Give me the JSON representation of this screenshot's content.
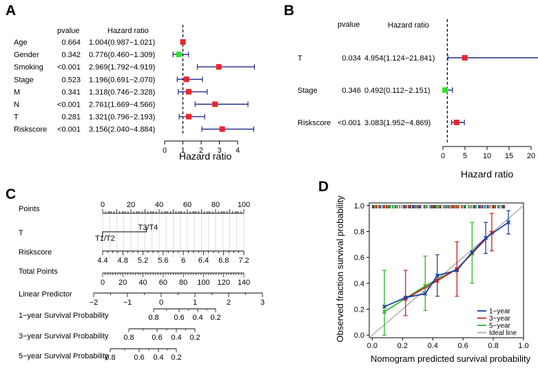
{
  "colors": {
    "red": "#e8262a",
    "green": "#2ee62e",
    "navy": "#1f2a8a",
    "blue": "#1b3fa0",
    "darkred": "#d41a1a",
    "green2": "#2fb32f",
    "gray": "#aaaaaa"
  },
  "chart_data": [
    {
      "panel": "A",
      "type": "forest",
      "header_pvalue": "pvalue",
      "header_hr": "Hazard ratio",
      "xlabel": "Hazard ratio",
      "xlim": [
        0,
        4
      ],
      "ticks": [
        "0",
        "1",
        "2",
        "3",
        "4"
      ],
      "rows": [
        {
          "label": "Age",
          "pvalue": "0.664",
          "hr_text": "1.004(0.987−1.021)",
          "hr": 1.004,
          "lo": 0.987,
          "hi": 1.021,
          "color": "red"
        },
        {
          "label": "Gender",
          "pvalue": "0.342",
          "hr_text": "0.776(0.460−1.309)",
          "hr": 0.776,
          "lo": 0.46,
          "hi": 1.309,
          "color": "green"
        },
        {
          "label": "Smoking",
          "pvalue": "<0.001",
          "hr_text": "2.969(1.792−4.919)",
          "hr": 2.969,
          "lo": 1.792,
          "hi": 4.919,
          "color": "red"
        },
        {
          "label": "Stage",
          "pvalue": "0.523",
          "hr_text": "1.196(0.691−2.070)",
          "hr": 1.196,
          "lo": 0.691,
          "hi": 2.07,
          "color": "red"
        },
        {
          "label": "M",
          "pvalue": "0.341",
          "hr_text": "1.318(0.746−2.328)",
          "hr": 1.318,
          "lo": 0.746,
          "hi": 2.328,
          "color": "red"
        },
        {
          "label": "N",
          "pvalue": "<0.001",
          "hr_text": "2.761(1.669−4.566)",
          "hr": 2.761,
          "lo": 1.669,
          "hi": 4.566,
          "color": "red"
        },
        {
          "label": "T",
          "pvalue": "0.281",
          "hr_text": "1.321(0.796−2.193)",
          "hr": 1.321,
          "lo": 0.796,
          "hi": 2.193,
          "color": "red"
        },
        {
          "label": "Riskscore",
          "pvalue": "<0.001",
          "hr_text": "3.156(2.040−4.884)",
          "hr": 3.156,
          "lo": 2.04,
          "hi": 4.884,
          "color": "red"
        }
      ]
    },
    {
      "panel": "B",
      "type": "forest",
      "header_pvalue": "pvalue",
      "header_hr": "Hazard ratio",
      "xlabel": "Hazard ratio",
      "xlim": [
        0,
        20
      ],
      "ticks": [
        "0",
        "5",
        "10",
        "15",
        "20"
      ],
      "rows": [
        {
          "label": "T",
          "pvalue": "0.034",
          "hr_text": "4.954(1.124−21.841)",
          "hr": 4.954,
          "lo": 1.124,
          "hi": 21.841,
          "color": "red"
        },
        {
          "label": "Stage",
          "pvalue": "0.346",
          "hr_text": "0.492(0.112−2.151)",
          "hr": 0.492,
          "lo": 0.112,
          "hi": 2.151,
          "color": "green"
        },
        {
          "label": "Riskscore",
          "pvalue": "<0.001",
          "hr_text": "3.083(1.952−4.869)",
          "hr": 3.083,
          "lo": 1.952,
          "hi": 4.869,
          "color": "red"
        }
      ]
    },
    {
      "panel": "C",
      "type": "nomogram",
      "rows": [
        {
          "label": "Points",
          "scale": {
            "min": 0,
            "max": 100,
            "labels": [
              "0",
              "20",
              "40",
              "60",
              "80",
              "100"
            ],
            "minor": 5
          }
        },
        {
          "label": "T",
          "scale": {
            "min": 0,
            "max": 100,
            "levels": [
              {
                "name": "T1/T2",
                "points": 0
              },
              {
                "name": "T3/T4",
                "points": 31
              }
            ]
          }
        },
        {
          "label": "Riskscore",
          "scale": {
            "min": 4.4,
            "max": 7.2,
            "labels": [
              "4.4",
              "4.8",
              "5.2",
              "5.6",
              "6",
              "6.4",
              "6.8",
              "7.2"
            ],
            "minor": 0.1
          }
        },
        {
          "label": "Total Points",
          "scale": {
            "min": 0,
            "max": 140,
            "labels": [
              "0",
              "20",
              "40",
              "60",
              "80",
              "100",
              "120",
              "140"
            ],
            "minor": 5
          }
        },
        {
          "label": "Linear Predictor",
          "scale": {
            "min": -2,
            "max": 3,
            "labels": [
              "−2",
              "−1",
              "0",
              "1",
              "2",
              "3"
            ]
          }
        },
        {
          "label": "1−year Survival Probability",
          "scale": {
            "labels": [
              "0.8",
              "0.6",
              "0.4",
              "0.2"
            ]
          }
        },
        {
          "label": "3−year Survival Probability",
          "scale": {
            "labels": [
              "0.8",
              "0.6",
              "0.4",
              "0.2"
            ]
          }
        },
        {
          "label": "5−year Survival Probability",
          "scale": {
            "labels": [
              "0.8",
              "0.6",
              "0.4",
              "0.2"
            ]
          }
        }
      ]
    },
    {
      "panel": "D",
      "type": "calibration",
      "xlabel": "Nomogram predicted survival probability",
      "ylabel": "Observed fraction survival probability",
      "xlim": [
        -0.02,
        1.0
      ],
      "ylim": [
        -0.02,
        1.02
      ],
      "xticks": [
        "0.0",
        "0.2",
        "0.4",
        "0.6",
        "0.8",
        "1.0"
      ],
      "yticks": [
        "0.0",
        "0.2",
        "0.4",
        "0.6",
        "0.8",
        "1.0"
      ],
      "legend": [
        "1−year",
        "3−year",
        "5−year",
        "Ideal line"
      ],
      "legend_position": "bottom-right",
      "series": [
        {
          "name": "1−year",
          "color": "blue",
          "points": [
            {
              "x": 0.08,
              "y": 0.22,
              "lo": 0.22,
              "hi": 0.22
            },
            {
              "x": 0.22,
              "y": 0.29,
              "lo": 0.29,
              "hi": 0.29
            },
            {
              "x": 0.35,
              "y": 0.32,
              "lo": 0.32,
              "hi": 0.32
            },
            {
              "x": 0.43,
              "y": 0.46,
              "lo": 0.3,
              "hi": 0.62
            },
            {
              "x": 0.56,
              "y": 0.5,
              "lo": 0.5,
              "hi": 0.5
            },
            {
              "x": 0.66,
              "y": 0.64,
              "lo": 0.64,
              "hi": 0.64
            },
            {
              "x": 0.75,
              "y": 0.75,
              "lo": 0.63,
              "hi": 0.87
            },
            {
              "x": 0.9,
              "y": 0.87,
              "lo": 0.78,
              "hi": 0.96
            }
          ]
        },
        {
          "name": "3−year",
          "color": "darkred",
          "points": [
            {
              "x": 0.22,
              "y": 0.28,
              "lo": 0.15,
              "hi": 0.5
            },
            {
              "x": 0.43,
              "y": 0.42,
              "lo": 0.42,
              "hi": 0.42
            },
            {
              "x": 0.56,
              "y": 0.51,
              "lo": 0.3,
              "hi": 0.72
            },
            {
              "x": 0.79,
              "y": 0.79,
              "lo": 0.65,
              "hi": 0.94
            }
          ]
        },
        {
          "name": "5−year",
          "color": "green2",
          "points": [
            {
              "x": 0.08,
              "y": 0.18,
              "lo": 0.0,
              "hi": 0.5
            },
            {
              "x": 0.35,
              "y": 0.38,
              "lo": 0.19,
              "hi": 0.61
            },
            {
              "x": 0.56,
              "y": 0.51,
              "lo": 0.51,
              "hi": 0.51
            },
            {
              "x": 0.66,
              "y": 0.63,
              "lo": 0.4,
              "hi": 0.87
            },
            {
              "x": 0.79,
              "y": 0.79,
              "lo": 0.79,
              "hi": 0.79
            }
          ]
        }
      ]
    }
  ],
  "panel_letters": [
    "A",
    "B",
    "C",
    "D"
  ]
}
